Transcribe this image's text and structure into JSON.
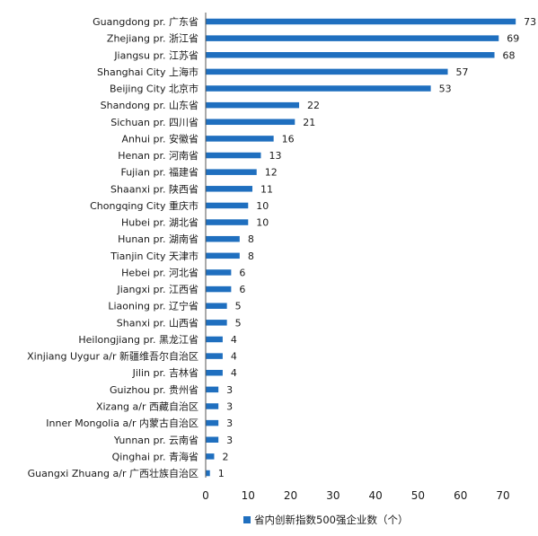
{
  "chart_data": {
    "type": "bar",
    "orientation": "horizontal",
    "categories": [
      "Guangdong pr. 广东省",
      "Zhejiang pr. 浙江省",
      "Jiangsu pr. 江苏省",
      "Shanghai City 上海市",
      "Beijing City 北京市",
      "Shandong pr. 山东省",
      "Sichuan pr. 四川省",
      "Anhui pr. 安徽省",
      "Henan pr. 河南省",
      "Fujian pr. 福建省",
      "Shaanxi pr. 陕西省",
      "Chongqing City 重庆市",
      "Hubei pr. 湖北省",
      "Hunan pr. 湖南省",
      "Tianjin City 天津市",
      "Hebei pr. 河北省",
      "Jiangxi pr. 江西省",
      "Liaoning pr. 辽宁省",
      "Shanxi pr. 山西省",
      "Heilongjiang pr. 黑龙江省",
      "Xinjiang Uygur a/r 新疆维吾尔自治区",
      "Jilin pr. 吉林省",
      "Guizhou pr. 贵州省",
      "Xizang a/r 西藏自治区",
      "Inner Mongolia a/r 内蒙古自治区",
      "Yunnan pr. 云南省",
      "Qinghai pr. 青海省",
      "Guangxi Zhuang a/r 广西壮族自治区"
    ],
    "series": [
      {
        "name": "省内创新指数500强企业数（个）",
        "values": [
          73,
          69,
          68,
          57,
          53,
          22,
          21,
          16,
          13,
          12,
          11,
          10,
          10,
          8,
          8,
          6,
          6,
          5,
          5,
          4,
          4,
          4,
          3,
          3,
          3,
          3,
          2,
          1
        ]
      }
    ],
    "xlim": [
      0,
      73
    ],
    "xticks": [
      0,
      10,
      20,
      30,
      40,
      50,
      60,
      70
    ],
    "grid": false,
    "legend_position": "bottom",
    "bar_color": "#1f6fbf"
  }
}
